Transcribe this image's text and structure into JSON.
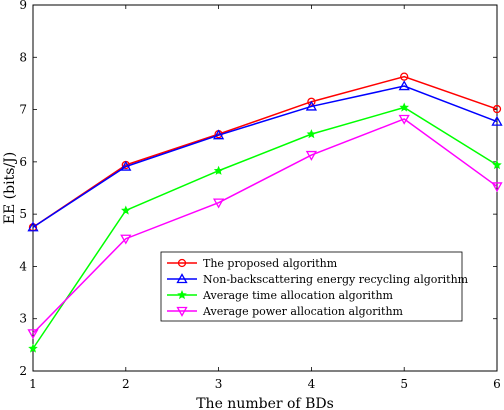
{
  "chart_data": {
    "type": "line",
    "xlabel": "The number of BDs",
    "ylabel": "EE (bits/J)",
    "x": [
      1,
      2,
      3,
      4,
      5,
      6
    ],
    "xlim": [
      1,
      6
    ],
    "ylim": [
      2,
      9
    ],
    "xticks": [
      1,
      2,
      3,
      4,
      5,
      6
    ],
    "yticks": [
      2,
      3,
      4,
      5,
      6,
      7,
      8,
      9
    ],
    "grid": false,
    "legend_position": "lower-right",
    "series": [
      {
        "name": "The proposed algorithm",
        "color": "#ff0000",
        "marker": "circle",
        "values": [
          4.75,
          5.94,
          6.53,
          7.15,
          7.63,
          7.01
        ]
      },
      {
        "name": "Non-backscattering energy recycling algorithm",
        "color": "#0000ff",
        "marker": "triangle-up",
        "values": [
          4.75,
          5.91,
          6.51,
          7.06,
          7.45,
          6.77
        ]
      },
      {
        "name": "Average time allocation algorithm",
        "color": "#00ff00",
        "marker": "star",
        "values": [
          2.43,
          5.07,
          5.83,
          6.53,
          7.04,
          5.94
        ]
      },
      {
        "name": "Average power allocation algorithm",
        "color": "#ff00ff",
        "marker": "triangle-down",
        "values": [
          2.72,
          4.53,
          5.22,
          6.13,
          6.82,
          5.53
        ]
      }
    ]
  }
}
